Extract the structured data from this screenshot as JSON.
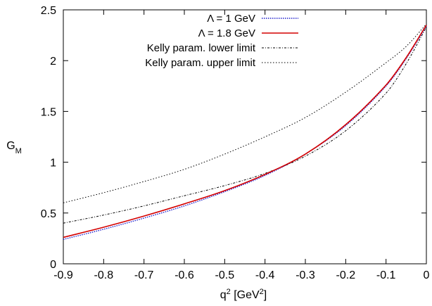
{
  "chart_data": {
    "type": "line",
    "xlabel": "q",
    "xlabel_sup": "2",
    "xlabel_unit_open": " [GeV",
    "xlabel_unit_sup": "2",
    "xlabel_unit_close": "]",
    "ylabel": "G",
    "ylabel_sub": "M",
    "xlim": [
      -0.9,
      0
    ],
    "ylim": [
      0,
      2.5
    ],
    "x_ticks": [
      -0.9,
      -0.8,
      -0.7,
      -0.6,
      -0.5,
      -0.4,
      -0.3,
      -0.2,
      -0.1,
      0
    ],
    "x_tick_labels": [
      "-0.9",
      "-0.8",
      "-0.7",
      "-0.6",
      "-0.5",
      "-0.4",
      "-0.3",
      "-0.2",
      "-0.1",
      "0"
    ],
    "y_ticks": [
      0,
      0.5,
      1,
      1.5,
      2,
      2.5
    ],
    "y_tick_labels": [
      "0",
      "0.5",
      "1",
      "1.5",
      "2",
      "2.5"
    ],
    "grid": false,
    "legend_position": "top-right",
    "x": [
      -0.9,
      -0.8,
      -0.7,
      -0.6,
      -0.5,
      -0.4,
      -0.3,
      -0.2,
      -0.1,
      -0.05,
      0
    ],
    "series": [
      {
        "name": "Λ = 1 GeV",
        "color": "#1f1fcc",
        "dash": "dotted-fine",
        "values": [
          0.24,
          0.34,
          0.45,
          0.57,
          0.71,
          0.87,
          1.08,
          1.36,
          1.75,
          2.02,
          2.34
        ]
      },
      {
        "name": "Λ = 1.8 GeV",
        "color": "#d40000",
        "dash": "solid",
        "values": [
          0.26,
          0.36,
          0.47,
          0.59,
          0.72,
          0.88,
          1.08,
          1.37,
          1.76,
          2.03,
          2.35
        ]
      },
      {
        "name": "Kelly param. lower limit",
        "color": "#000000",
        "dash": "dashdot",
        "values": [
          0.4,
          0.48,
          0.57,
          0.67,
          0.77,
          0.89,
          1.06,
          1.31,
          1.68,
          1.97,
          2.33
        ]
      },
      {
        "name": "Kelly param. upper limit",
        "color": "#000000",
        "dash": "dotted",
        "values": [
          0.6,
          0.7,
          0.81,
          0.93,
          1.08,
          1.25,
          1.44,
          1.69,
          1.98,
          2.14,
          2.36
        ]
      }
    ]
  }
}
